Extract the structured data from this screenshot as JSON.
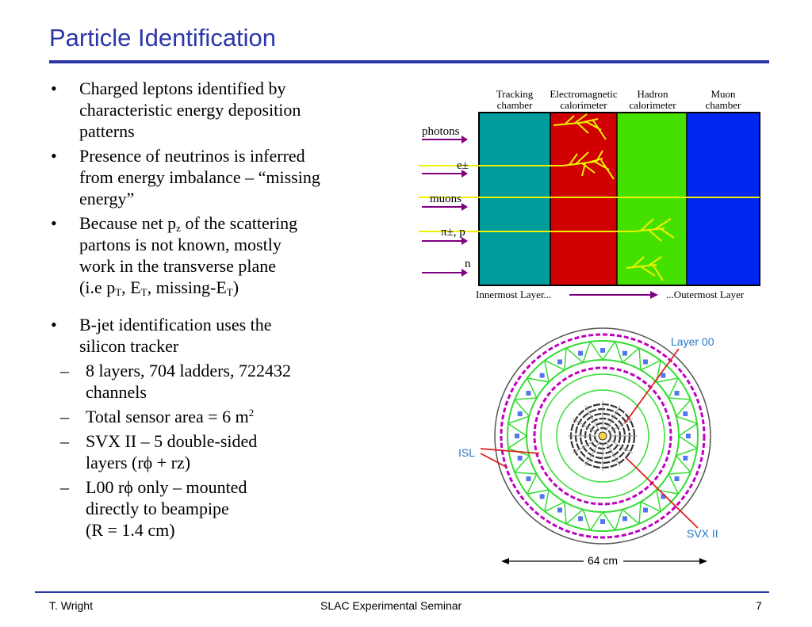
{
  "slide": {
    "title": "Particle Identification"
  },
  "bullets": {
    "b1": [
      "Charged leptons identified by",
      "characteristic energy deposition",
      "patterns"
    ],
    "b2": [
      "Presence of neutrinos is inferred",
      "from energy imbalance – “missing",
      "energy”"
    ],
    "b3_line1_pre": "Because net p",
    "b3_line1_sub": "z",
    "b3_line1_post": " of the scattering",
    "b3_lines": [
      "partons is not known, mostly",
      "work in the transverse plane"
    ],
    "b3_last": {
      "a": "(i.e p",
      "as": "T",
      "b": ", E",
      "bs": "T",
      "c": ", missing-E",
      "cs": "T",
      "d": ")"
    },
    "b4": [
      "B-jet identification uses the",
      "silicon tracker"
    ],
    "s1": [
      "8 layers, 704 ladders, 722432",
      "channels"
    ],
    "s2": {
      "text": "Total sensor area = 6 m",
      "sup": "2"
    },
    "s3": [
      "SVX II – 5 double-sided",
      "layers (rϕ + rz)"
    ],
    "s4": [
      "L00 rϕ only – mounted",
      "directly to beampipe",
      "(R = 1.4 cm)"
    ]
  },
  "detector": {
    "layers": [
      {
        "name1": "Tracking",
        "name2": "chamber",
        "color": "#009b9b"
      },
      {
        "name1": "Electromagnetic",
        "name2": "calorimeter",
        "color": "#d10000"
      },
      {
        "name1": "Hadron",
        "name2": "calorimeter",
        "color": "#44e000"
      },
      {
        "name1": "Muon",
        "name2": "chamber",
        "color": "#0026f0"
      }
    ],
    "particles": [
      "photons",
      "e±",
      "muons",
      "π±, p",
      "n"
    ],
    "arrow_color": "#800080",
    "track_color": "#f0f000",
    "inner_label": "Innermost Layer...",
    "outer_label": "...Outermost Layer"
  },
  "tracker": {
    "labels": {
      "layer00": "Layer 00",
      "isl": "ISL",
      "svx": "SVX II",
      "scale": "64 cm"
    },
    "label_color": "#2a78c8",
    "arrow_color": "#e02020"
  },
  "footer": {
    "author": "T. Wright",
    "event": "SLAC Experimental Seminar",
    "page": "7"
  }
}
